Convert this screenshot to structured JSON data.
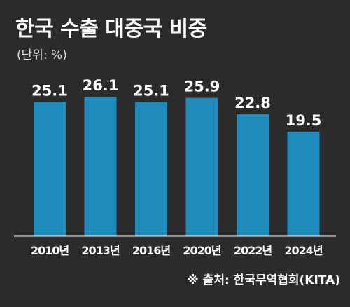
{
  "title": "한국 수출 대중국 비중",
  "unit_label": "(단위: %)",
  "source": "※ 출처: 한국무역협회(KITA)",
  "colors": {
    "background": "#2b2b2b",
    "bar": "#1f8bbd",
    "text": "#ffffff",
    "axis": "#ffffff"
  },
  "chart_data": {
    "type": "bar",
    "categories": [
      "2010년",
      "2013년",
      "2016년",
      "2020년",
      "2022년",
      "2024년"
    ],
    "values": [
      25.1,
      26.1,
      25.1,
      25.9,
      22.8,
      19.5
    ],
    "ylim": [
      0,
      26.1
    ],
    "grid": false,
    "legend": "none"
  }
}
